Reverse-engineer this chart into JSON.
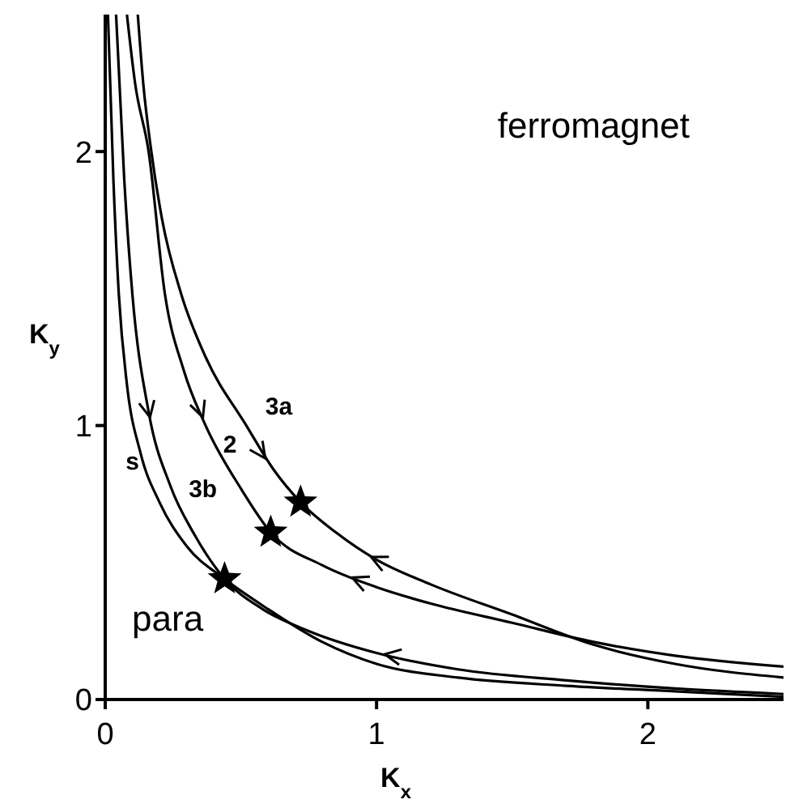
{
  "chart_data": {
    "type": "line",
    "xlabel": "K$_{x}$",
    "ylabel": "K$_{y}$",
    "xlim": [
      0,
      2.5
    ],
    "ylim": [
      0,
      2.5
    ],
    "xticks": [
      0,
      1,
      2
    ],
    "yticks": [
      0,
      1,
      2
    ],
    "marker": "none",
    "line_style": "solid",
    "annotations": [
      "ferromagnet",
      "para"
    ],
    "series": [
      {
        "name": "s",
        "color": "#000000",
        "x": [
          0.01,
          0.03,
          0.05,
          0.08,
          0.13,
          0.2,
          0.3,
          0.44,
          0.6,
          0.8,
          1,
          1.3,
          1.7,
          2.1,
          2.5
        ],
        "values": [
          2.5,
          1.9,
          1.48,
          1.15,
          0.9,
          0.72,
          0.56,
          0.44,
          0.33,
          0.21,
          0.13,
          0.08,
          0.05,
          0.03,
          0.01
        ]
      },
      {
        "name": "3b",
        "color": "#000000",
        "x": [
          0.04,
          0.07,
          0.1,
          0.16,
          0.24,
          0.33,
          0.44,
          0.58,
          0.75,
          1,
          1.3,
          1.7,
          2.1,
          2.5
        ],
        "values": [
          2.5,
          1.9,
          1.48,
          1.05,
          0.78,
          0.6,
          0.44,
          0.33,
          0.25,
          0.17,
          0.11,
          0.07,
          0.04,
          0.02
        ]
      },
      {
        "name": "2",
        "color": "#000000",
        "x": [
          0.08,
          0.11,
          0.16,
          0.22,
          0.29,
          0.37,
          0.5,
          0.61,
          0.8,
          1,
          1.2,
          1.5,
          1.8,
          2.1,
          2.5
        ],
        "values": [
          2.5,
          2.25,
          2,
          1.48,
          1.2,
          1,
          0.77,
          0.61,
          0.49,
          0.41,
          0.35,
          0.28,
          0.21,
          0.16,
          0.12
        ]
      },
      {
        "name": "3a",
        "color": "#000000",
        "x": [
          0.12,
          0.14,
          0.17,
          0.21,
          0.28,
          0.37,
          0.52,
          0.62,
          0.72,
          0.85,
          1,
          1.2,
          1.5,
          1.8,
          2.1,
          2.5
        ],
        "values": [
          2.5,
          2.25,
          2,
          1.75,
          1.48,
          1.25,
          1,
          0.84,
          0.72,
          0.61,
          0.51,
          0.42,
          0.31,
          0.2,
          0.13,
          0.08
        ]
      },
      {
        "type": "scatter",
        "marker": "star",
        "color": "#000000",
        "x": [
          0.44,
          0.61,
          0.72
        ],
        "values": [
          0.44,
          0.61,
          0.72
        ]
      }
    ]
  }
}
